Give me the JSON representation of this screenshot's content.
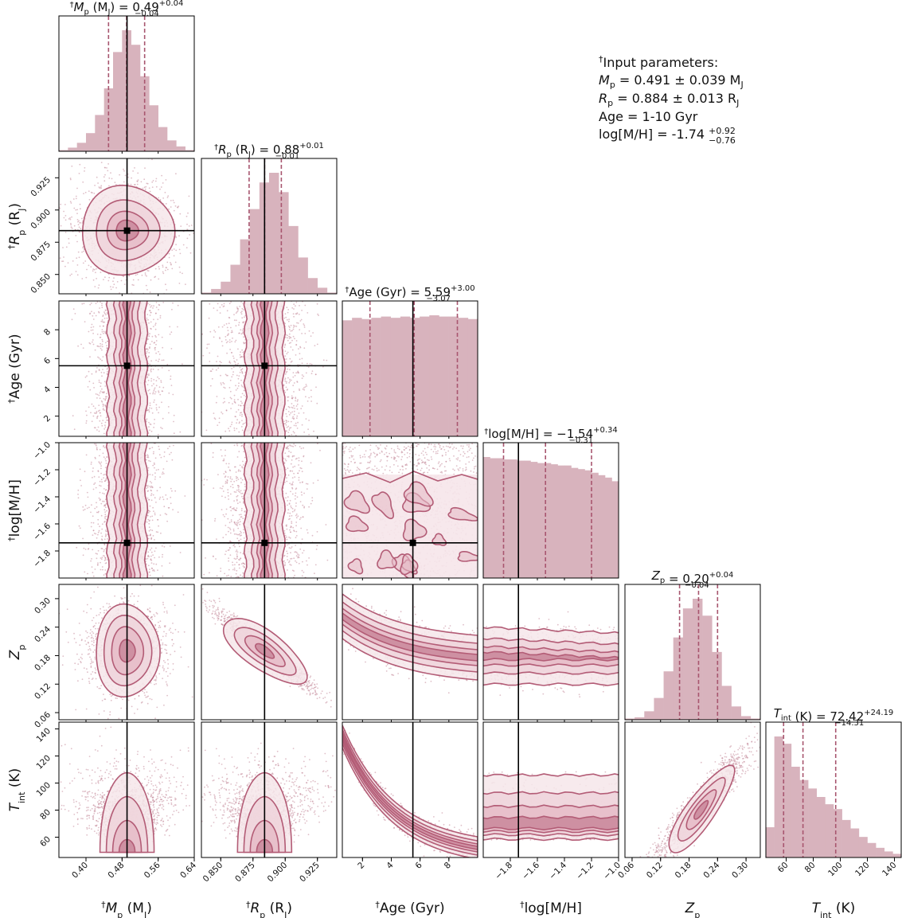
{
  "chart_data": {
    "type": "corner",
    "colors": {
      "bins": "#d8b3bd",
      "contour": "#b35c76",
      "scatter": "#c58a9b",
      "fill_light": "#f6e6ea",
      "fill_mid": "#e6bcc8",
      "fill_dark": "#c9879b",
      "dashed": "#a8566f",
      "truth": "#000000"
    },
    "parameters": [
      {
        "id": "mp",
        "label_parts": [
          "†",
          "M",
          "p",
          " (M",
          "J",
          ")"
        ],
        "range": [
          0.34,
          0.64
        ],
        "ticks": [
          0.4,
          0.48,
          0.56,
          0.64
        ],
        "tick_labels": [
          "0.40",
          "0.48",
          "0.56",
          "0.64"
        ],
        "truth": 0.491,
        "title": {
          "prefix": "†",
          "sym": "M",
          "sub": "p",
          "unit": " (M",
          "unitsub": "J",
          "unitend": ") = ",
          "value": "0.49",
          "plus": "+0.04",
          "minus": "−0.04"
        },
        "quantiles": [
          0.45,
          0.49,
          0.53
        ]
      },
      {
        "id": "rp",
        "label_parts": [
          "†",
          "R",
          "p",
          " (R",
          "J",
          ")"
        ],
        "range": [
          0.835,
          0.94
        ],
        "ticks": [
          0.85,
          0.875,
          0.9,
          0.925
        ],
        "tick_labels": [
          "0.850",
          "0.875",
          "0.900",
          "0.925"
        ],
        "truth": 0.884,
        "title": {
          "prefix": "†",
          "sym": "R",
          "sub": "p",
          "unit": " (R",
          "unitsub": "J",
          "unitend": ") = ",
          "value": "0.88",
          "plus": "+0.01",
          "minus": "−0.01"
        },
        "quantiles": [
          0.872,
          0.884,
          0.897
        ]
      },
      {
        "id": "age",
        "label_parts": [
          "†",
          "Age (Gyr)"
        ],
        "range": [
          0.6,
          10.0
        ],
        "ticks": [
          2,
          4,
          6,
          8
        ],
        "tick_labels": [
          "2",
          "4",
          "6",
          "8"
        ],
        "truth": 5.5,
        "title": {
          "prefix": "†",
          "text": "Age (Gyr) = ",
          "value": "5.59",
          "plus": "+3.00",
          "minus": "−3.07"
        },
        "quantiles": [
          2.52,
          5.59,
          8.59
        ]
      },
      {
        "id": "mh",
        "label_parts": [
          "†",
          "log[M/H]"
        ],
        "range": [
          -2.0,
          -1.0
        ],
        "ticks": [
          -1.8,
          -1.6,
          -1.4,
          -1.2,
          -1.0
        ],
        "tick_labels": [
          "−1.8",
          "−1.6",
          "−1.4",
          "−1.2",
          "−1.0"
        ],
        "truth": -1.74,
        "title": {
          "prefix": "†",
          "text": "log[M/H] = ",
          "value": "−1.54",
          "plus": "+0.34",
          "minus": "−0.31"
        },
        "quantiles": [
          -1.85,
          -1.54,
          -1.2
        ]
      },
      {
        "id": "zp",
        "label_parts": [
          "",
          "Z",
          "p"
        ],
        "range": [
          0.045,
          0.33
        ],
        "ticks": [
          0.06,
          0.12,
          0.18,
          0.24,
          0.3
        ],
        "tick_labels": [
          "0.06",
          "0.12",
          "0.18",
          "0.24",
          "0.30"
        ],
        "truth": null,
        "title": {
          "prefix": "",
          "sym": "Z",
          "sub": "p",
          "text": " = ",
          "value": "0.20",
          "plus": "+0.04",
          "minus": "−0.04"
        },
        "quantiles": [
          0.16,
          0.2,
          0.24
        ]
      },
      {
        "id": "tint",
        "label_parts": [
          "",
          "T",
          "int",
          " (K)"
        ],
        "range": [
          45,
          145
        ],
        "ticks": [
          60,
          80,
          100,
          120,
          140
        ],
        "tick_labels": [
          "60",
          "80",
          "100",
          "120",
          "140"
        ],
        "truth": null,
        "title": {
          "prefix": "",
          "sym": "T",
          "sub": "int",
          "text": " (K) = ",
          "value": "72.42",
          "plus": "+24.19",
          "minus": "−14.31"
        },
        "quantiles": [
          58.1,
          72.42,
          96.6
        ]
      }
    ],
    "histograms": {
      "mp": [
        1,
        3,
        7,
        15,
        30,
        52,
        82,
        100,
        88,
        62,
        38,
        20,
        9,
        4,
        1
      ],
      "rp": [
        1,
        4,
        10,
        24,
        45,
        70,
        92,
        100,
        84,
        56,
        30,
        13,
        5,
        1
      ],
      "age": [
        92,
        94,
        93,
        94,
        95,
        94,
        95,
        94,
        95,
        96,
        95,
        95,
        94,
        93
      ],
      "mh": [
        100,
        99,
        99,
        98,
        98,
        97,
        97,
        96,
        95,
        95,
        94,
        93,
        93,
        91,
        90,
        89,
        87,
        85,
        83,
        80
      ],
      "zp": [
        1,
        2,
        7,
        18,
        40,
        68,
        92,
        100,
        86,
        56,
        28,
        11,
        3,
        1
      ],
      "tint": [
        25,
        100,
        94,
        75,
        64,
        57,
        50,
        44,
        40,
        31,
        24,
        17,
        12,
        8,
        5,
        3
      ]
    },
    "info_box": {
      "line1": "Input parameters:",
      "mp_text": " = 0.491 ± 0.039 M",
      "rp_text": " = 0.884 ± 0.013 R",
      "age_text": "Age = 1-10 Gyr",
      "mh_text": "log[M/H] = -1.74 ",
      "mh_plus": "+0.92",
      "mh_minus": "−0.76"
    }
  }
}
